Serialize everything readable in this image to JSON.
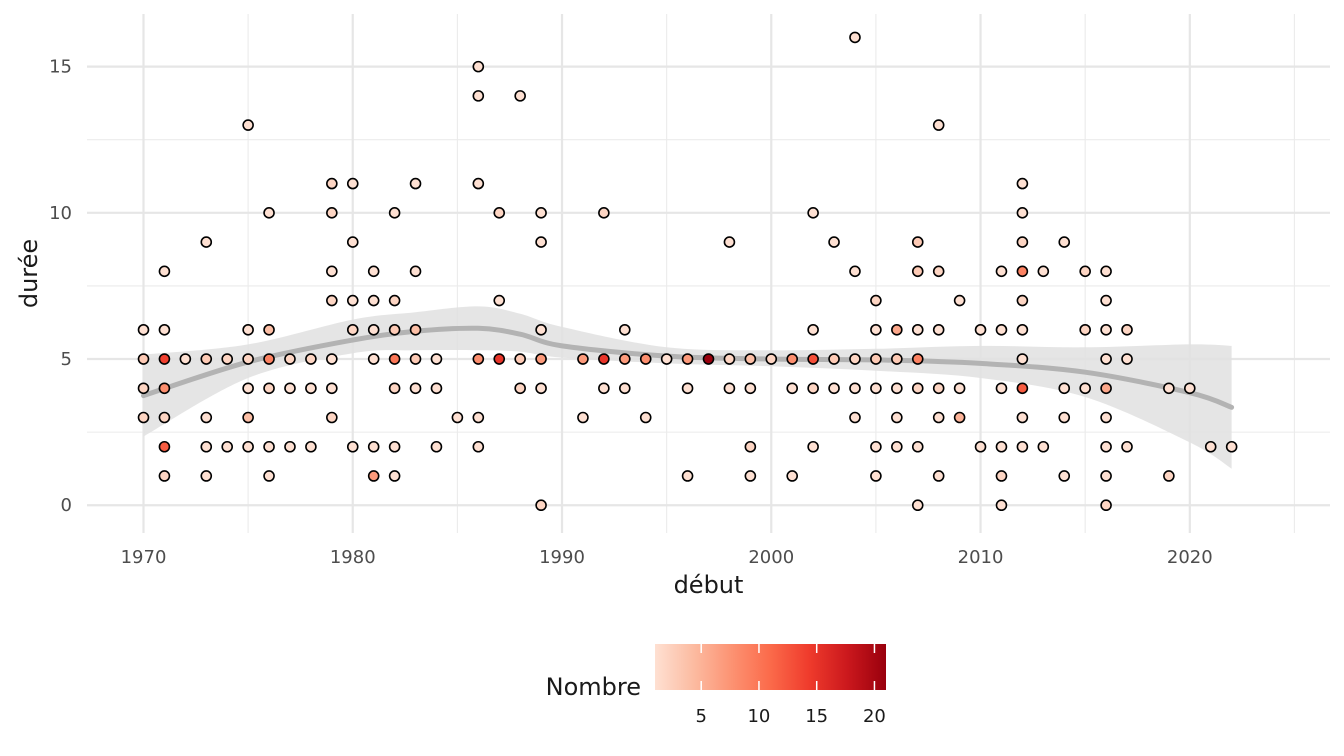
{
  "chart_data": {
    "type": "scatter",
    "title": "",
    "xlabel": "début",
    "ylabel": "durée",
    "xlim": [
      1967.3,
      2026.7
    ],
    "ylim": [
      -0.95,
      16.8
    ],
    "x_ticks": [
      1970,
      1980,
      1990,
      2000,
      2010,
      2020
    ],
    "y_ticks": [
      0,
      5,
      10,
      15
    ],
    "grid": true,
    "legend": {
      "title": "Nombre",
      "position": "bottom",
      "ticks": [
        5,
        10,
        15,
        20
      ],
      "range": [
        1,
        21
      ],
      "colors": [
        "#fee0d2",
        "#fcbba1",
        "#fc9272",
        "#fb6a4a",
        "#ef3b2c",
        "#cb181d",
        "#99000d"
      ]
    },
    "trend": {
      "color": "#b3b3b3",
      "band_color": "#e0e0e0",
      "x": [
        1970,
        1975,
        1980,
        1983,
        1986,
        1988,
        1990,
        1995,
        2000,
        2005,
        2010,
        2015,
        2020,
        2022
      ],
      "y": [
        3.75,
        4.9,
        5.65,
        5.95,
        6.05,
        5.85,
        5.45,
        5.1,
        5.0,
        4.97,
        4.85,
        4.55,
        3.85,
        3.35
      ],
      "lower": [
        2.35,
        4.35,
        5.2,
        5.3,
        5.3,
        5.25,
        5.05,
        4.85,
        4.75,
        4.6,
        4.35,
        3.7,
        2.15,
        1.25
      ],
      "upper": [
        5.15,
        5.5,
        6.35,
        6.6,
        6.8,
        6.55,
        6.1,
        5.4,
        5.3,
        5.35,
        5.45,
        5.4,
        5.5,
        5.45
      ]
    },
    "points": [
      {
        "x": 1970,
        "y": 6,
        "n": 1
      },
      {
        "x": 1970,
        "y": 5,
        "n": 3
      },
      {
        "x": 1970,
        "y": 4,
        "n": 2
      },
      {
        "x": 1970,
        "y": 3,
        "n": 2
      },
      {
        "x": 1971,
        "y": 8,
        "n": 1
      },
      {
        "x": 1971,
        "y": 6,
        "n": 1
      },
      {
        "x": 1971,
        "y": 5,
        "n": 14
      },
      {
        "x": 1971,
        "y": 4,
        "n": 8
      },
      {
        "x": 1971,
        "y": 3,
        "n": 2
      },
      {
        "x": 1971,
        "y": 2,
        "n": 12
      },
      {
        "x": 1971,
        "y": 1,
        "n": 2
      },
      {
        "x": 1972,
        "y": 5,
        "n": 1
      },
      {
        "x": 1973,
        "y": 9,
        "n": 1
      },
      {
        "x": 1973,
        "y": 5,
        "n": 3
      },
      {
        "x": 1973,
        "y": 3,
        "n": 1
      },
      {
        "x": 1973,
        "y": 2,
        "n": 1
      },
      {
        "x": 1973,
        "y": 1,
        "n": 1
      },
      {
        "x": 1974,
        "y": 5,
        "n": 2
      },
      {
        "x": 1974,
        "y": 2,
        "n": 1
      },
      {
        "x": 1975,
        "y": 13,
        "n": 1
      },
      {
        "x": 1975,
        "y": 6,
        "n": 1
      },
      {
        "x": 1975,
        "y": 5,
        "n": 2
      },
      {
        "x": 1975,
        "y": 4,
        "n": 1
      },
      {
        "x": 1975,
        "y": 3,
        "n": 4
      },
      {
        "x": 1975,
        "y": 2,
        "n": 1
      },
      {
        "x": 1976,
        "y": 10,
        "n": 1
      },
      {
        "x": 1976,
        "y": 6,
        "n": 4
      },
      {
        "x": 1976,
        "y": 5,
        "n": 9
      },
      {
        "x": 1976,
        "y": 4,
        "n": 2
      },
      {
        "x": 1976,
        "y": 2,
        "n": 1
      },
      {
        "x": 1976,
        "y": 1,
        "n": 1
      },
      {
        "x": 1977,
        "y": 5,
        "n": 2
      },
      {
        "x": 1977,
        "y": 4,
        "n": 1
      },
      {
        "x": 1977,
        "y": 2,
        "n": 1
      },
      {
        "x": 1978,
        "y": 5,
        "n": 2
      },
      {
        "x": 1978,
        "y": 4,
        "n": 1
      },
      {
        "x": 1978,
        "y": 2,
        "n": 1
      },
      {
        "x": 1979,
        "y": 11,
        "n": 2
      },
      {
        "x": 1979,
        "y": 10,
        "n": 2
      },
      {
        "x": 1979,
        "y": 8,
        "n": 1
      },
      {
        "x": 1979,
        "y": 7,
        "n": 2
      },
      {
        "x": 1979,
        "y": 5,
        "n": 1
      },
      {
        "x": 1979,
        "y": 4,
        "n": 1
      },
      {
        "x": 1979,
        "y": 3,
        "n": 2
      },
      {
        "x": 1980,
        "y": 11,
        "n": 1
      },
      {
        "x": 1980,
        "y": 9,
        "n": 1
      },
      {
        "x": 1980,
        "y": 7,
        "n": 1
      },
      {
        "x": 1980,
        "y": 6,
        "n": 2
      },
      {
        "x": 1980,
        "y": 2,
        "n": 1
      },
      {
        "x": 1981,
        "y": 8,
        "n": 1
      },
      {
        "x": 1981,
        "y": 7,
        "n": 1
      },
      {
        "x": 1981,
        "y": 6,
        "n": 1
      },
      {
        "x": 1981,
        "y": 5,
        "n": 1
      },
      {
        "x": 1981,
        "y": 2,
        "n": 1
      },
      {
        "x": 1981,
        "y": 1,
        "n": 7
      },
      {
        "x": 1982,
        "y": 10,
        "n": 1
      },
      {
        "x": 1982,
        "y": 7,
        "n": 2
      },
      {
        "x": 1982,
        "y": 6,
        "n": 3
      },
      {
        "x": 1982,
        "y": 5,
        "n": 10
      },
      {
        "x": 1982,
        "y": 4,
        "n": 2
      },
      {
        "x": 1982,
        "y": 2,
        "n": 1
      },
      {
        "x": 1982,
        "y": 1,
        "n": 1
      },
      {
        "x": 1983,
        "y": 11,
        "n": 1
      },
      {
        "x": 1983,
        "y": 8,
        "n": 1
      },
      {
        "x": 1983,
        "y": 6,
        "n": 4
      },
      {
        "x": 1983,
        "y": 5,
        "n": 3
      },
      {
        "x": 1983,
        "y": 4,
        "n": 1
      },
      {
        "x": 1984,
        "y": 5,
        "n": 1
      },
      {
        "x": 1984,
        "y": 4,
        "n": 1
      },
      {
        "x": 1984,
        "y": 2,
        "n": 1
      },
      {
        "x": 1985,
        "y": 3,
        "n": 1
      },
      {
        "x": 1986,
        "y": 15,
        "n": 1
      },
      {
        "x": 1986,
        "y": 14,
        "n": 1
      },
      {
        "x": 1986,
        "y": 11,
        "n": 1
      },
      {
        "x": 1986,
        "y": 5,
        "n": 8
      },
      {
        "x": 1986,
        "y": 3,
        "n": 1
      },
      {
        "x": 1986,
        "y": 2,
        "n": 1
      },
      {
        "x": 1987,
        "y": 10,
        "n": 2
      },
      {
        "x": 1987,
        "y": 7,
        "n": 1
      },
      {
        "x": 1987,
        "y": 5,
        "n": 15
      },
      {
        "x": 1988,
        "y": 14,
        "n": 1
      },
      {
        "x": 1988,
        "y": 5,
        "n": 3
      },
      {
        "x": 1988,
        "y": 4,
        "n": 2
      },
      {
        "x": 1989,
        "y": 10,
        "n": 1
      },
      {
        "x": 1989,
        "y": 9,
        "n": 1
      },
      {
        "x": 1989,
        "y": 6,
        "n": 1
      },
      {
        "x": 1989,
        "y": 5,
        "n": 7
      },
      {
        "x": 1989,
        "y": 4,
        "n": 1
      },
      {
        "x": 1989,
        "y": 0,
        "n": 2
      },
      {
        "x": 1991,
        "y": 5,
        "n": 7
      },
      {
        "x": 1991,
        "y": 3,
        "n": 1
      },
      {
        "x": 1992,
        "y": 10,
        "n": 2
      },
      {
        "x": 1992,
        "y": 5,
        "n": 15
      },
      {
        "x": 1992,
        "y": 4,
        "n": 1
      },
      {
        "x": 1993,
        "y": 6,
        "n": 1
      },
      {
        "x": 1993,
        "y": 5,
        "n": 7
      },
      {
        "x": 1993,
        "y": 4,
        "n": 1
      },
      {
        "x": 1994,
        "y": 5,
        "n": 8
      },
      {
        "x": 1994,
        "y": 3,
        "n": 1
      },
      {
        "x": 1995,
        "y": 5,
        "n": 1
      },
      {
        "x": 1996,
        "y": 5,
        "n": 7
      },
      {
        "x": 1996,
        "y": 4,
        "n": 1
      },
      {
        "x": 1996,
        "y": 1,
        "n": 1
      },
      {
        "x": 1997,
        "y": 5,
        "n": 21
      },
      {
        "x": 1998,
        "y": 9,
        "n": 1
      },
      {
        "x": 1998,
        "y": 5,
        "n": 2
      },
      {
        "x": 1998,
        "y": 4,
        "n": 1
      },
      {
        "x": 1999,
        "y": 5,
        "n": 4
      },
      {
        "x": 1999,
        "y": 4,
        "n": 1
      },
      {
        "x": 1999,
        "y": 2,
        "n": 2
      },
      {
        "x": 1999,
        "y": 1,
        "n": 1
      },
      {
        "x": 2000,
        "y": 5,
        "n": 2
      },
      {
        "x": 2001,
        "y": 5,
        "n": 8
      },
      {
        "x": 2001,
        "y": 4,
        "n": 1
      },
      {
        "x": 2001,
        "y": 1,
        "n": 1
      },
      {
        "x": 2002,
        "y": 10,
        "n": 1
      },
      {
        "x": 2002,
        "y": 6,
        "n": 1
      },
      {
        "x": 2002,
        "y": 5,
        "n": 13
      },
      {
        "x": 2002,
        "y": 4,
        "n": 2
      },
      {
        "x": 2002,
        "y": 2,
        "n": 1
      },
      {
        "x": 2003,
        "y": 9,
        "n": 1
      },
      {
        "x": 2003,
        "y": 5,
        "n": 3
      },
      {
        "x": 2003,
        "y": 4,
        "n": 1
      },
      {
        "x": 2004,
        "y": 16,
        "n": 1
      },
      {
        "x": 2004,
        "y": 8,
        "n": 1
      },
      {
        "x": 2004,
        "y": 5,
        "n": 2
      },
      {
        "x": 2004,
        "y": 4,
        "n": 1
      },
      {
        "x": 2004,
        "y": 3,
        "n": 1
      },
      {
        "x": 2005,
        "y": 7,
        "n": 2
      },
      {
        "x": 2005,
        "y": 6,
        "n": 1
      },
      {
        "x": 2005,
        "y": 5,
        "n": 3
      },
      {
        "x": 2005,
        "y": 4,
        "n": 1
      },
      {
        "x": 2005,
        "y": 2,
        "n": 1
      },
      {
        "x": 2005,
        "y": 1,
        "n": 1
      },
      {
        "x": 2006,
        "y": 6,
        "n": 6
      },
      {
        "x": 2006,
        "y": 5,
        "n": 3
      },
      {
        "x": 2006,
        "y": 4,
        "n": 1
      },
      {
        "x": 2006,
        "y": 3,
        "n": 1
      },
      {
        "x": 2006,
        "y": 2,
        "n": 1
      },
      {
        "x": 2007,
        "y": 9,
        "n": 3
      },
      {
        "x": 2007,
        "y": 8,
        "n": 3
      },
      {
        "x": 2007,
        "y": 6,
        "n": 1
      },
      {
        "x": 2007,
        "y": 5,
        "n": 9
      },
      {
        "x": 2007,
        "y": 4,
        "n": 2
      },
      {
        "x": 2007,
        "y": 2,
        "n": 1
      },
      {
        "x": 2007,
        "y": 0,
        "n": 1
      },
      {
        "x": 2008,
        "y": 13,
        "n": 1
      },
      {
        "x": 2008,
        "y": 8,
        "n": 2
      },
      {
        "x": 2008,
        "y": 6,
        "n": 1
      },
      {
        "x": 2008,
        "y": 4,
        "n": 2
      },
      {
        "x": 2008,
        "y": 3,
        "n": 1
      },
      {
        "x": 2008,
        "y": 1,
        "n": 1
      },
      {
        "x": 2009,
        "y": 7,
        "n": 1
      },
      {
        "x": 2009,
        "y": 4,
        "n": 1
      },
      {
        "x": 2009,
        "y": 3,
        "n": 5
      },
      {
        "x": 2010,
        "y": 6,
        "n": 1
      },
      {
        "x": 2010,
        "y": 2,
        "n": 1
      },
      {
        "x": 2011,
        "y": 8,
        "n": 1
      },
      {
        "x": 2011,
        "y": 6,
        "n": 1
      },
      {
        "x": 2011,
        "y": 4,
        "n": 1
      },
      {
        "x": 2011,
        "y": 2,
        "n": 1
      },
      {
        "x": 2011,
        "y": 1,
        "n": 2
      },
      {
        "x": 2011,
        "y": 0,
        "n": 1
      },
      {
        "x": 2012,
        "y": 11,
        "n": 1
      },
      {
        "x": 2012,
        "y": 10,
        "n": 1
      },
      {
        "x": 2012,
        "y": 9,
        "n": 2
      },
      {
        "x": 2012,
        "y": 8,
        "n": 9
      },
      {
        "x": 2012,
        "y": 7,
        "n": 2
      },
      {
        "x": 2012,
        "y": 6,
        "n": 1
      },
      {
        "x": 2012,
        "y": 5,
        "n": 1
      },
      {
        "x": 2012,
        "y": 4,
        "n": 12
      },
      {
        "x": 2012,
        "y": 3,
        "n": 1
      },
      {
        "x": 2012,
        "y": 2,
        "n": 1
      },
      {
        "x": 2013,
        "y": 8,
        "n": 1
      },
      {
        "x": 2013,
        "y": 2,
        "n": 1
      },
      {
        "x": 2014,
        "y": 9,
        "n": 1
      },
      {
        "x": 2014,
        "y": 4,
        "n": 1
      },
      {
        "x": 2014,
        "y": 3,
        "n": 1
      },
      {
        "x": 2014,
        "y": 1,
        "n": 1
      },
      {
        "x": 2015,
        "y": 8,
        "n": 2
      },
      {
        "x": 2015,
        "y": 6,
        "n": 2
      },
      {
        "x": 2015,
        "y": 4,
        "n": 1
      },
      {
        "x": 2016,
        "y": 8,
        "n": 1
      },
      {
        "x": 2016,
        "y": 7,
        "n": 1
      },
      {
        "x": 2016,
        "y": 6,
        "n": 1
      },
      {
        "x": 2016,
        "y": 5,
        "n": 1
      },
      {
        "x": 2016,
        "y": 4,
        "n": 6
      },
      {
        "x": 2016,
        "y": 3,
        "n": 1
      },
      {
        "x": 2016,
        "y": 2,
        "n": 1
      },
      {
        "x": 2016,
        "y": 1,
        "n": 1
      },
      {
        "x": 2016,
        "y": 0,
        "n": 2
      },
      {
        "x": 2017,
        "y": 6,
        "n": 2
      },
      {
        "x": 2017,
        "y": 5,
        "n": 1
      },
      {
        "x": 2017,
        "y": 2,
        "n": 1
      },
      {
        "x": 2019,
        "y": 4,
        "n": 1
      },
      {
        "x": 2019,
        "y": 1,
        "n": 2
      },
      {
        "x": 2020,
        "y": 4,
        "n": 1
      },
      {
        "x": 2021,
        "y": 2,
        "n": 1
      },
      {
        "x": 2022,
        "y": 2,
        "n": 1
      }
    ]
  }
}
